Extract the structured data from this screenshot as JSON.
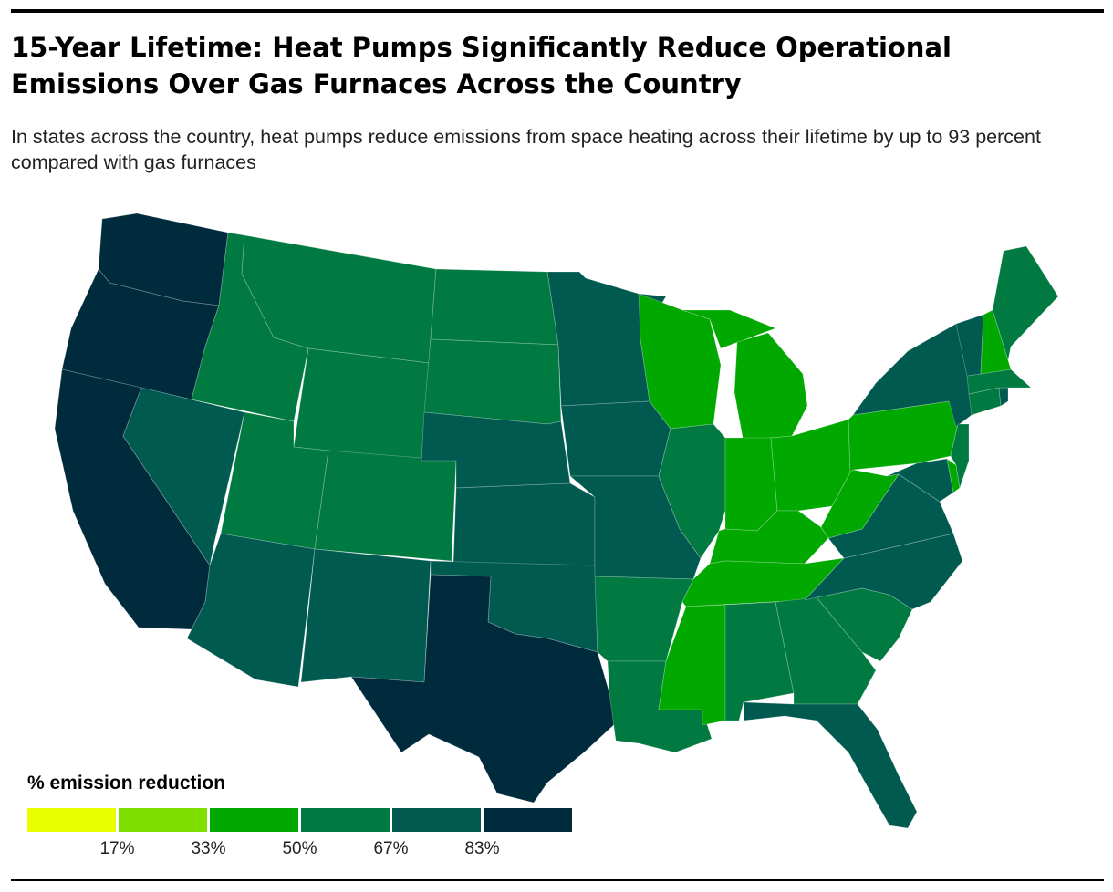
{
  "header": {
    "title": "15-Year Lifetime: Heat Pumps Significantly Reduce Operational Emissions Over Gas Furnaces Across the Country",
    "subtitle": "In states across the country, heat pumps reduce emissions from space heating across their lifetime by up to 93 percent compared with gas furnaces"
  },
  "legend": {
    "title": "% emission reduction",
    "bins": [
      {
        "color": "#e8ff00"
      },
      {
        "color": "#7fe000"
      },
      {
        "color": "#00a800"
      },
      {
        "color": "#007a40"
      },
      {
        "color": "#005a50"
      },
      {
        "color": "#002b3d"
      }
    ],
    "ticks": [
      "17%",
      "33%",
      "50%",
      "67%",
      "83%"
    ]
  },
  "map_data": {
    "type": "choropleth",
    "region": "contiguous United States",
    "value_bins": [
      "0-17%",
      "17-33%",
      "33-50%",
      "50-67%",
      "67-83%",
      "83-100%"
    ],
    "colors": {
      "33-50%": "#00a800",
      "50-67%": "#007a40",
      "67-83%": "#005a50",
      "83-100%": "#002b3d"
    },
    "state_bins": {
      "WA": "83-100%",
      "OR": "83-100%",
      "CA": "83-100%",
      "TX": "83-100%",
      "ID": "50-67%",
      "MT": "50-67%",
      "WY": "50-67%",
      "ND": "50-67%",
      "SD": "50-67%",
      "UT": "50-67%",
      "CO": "50-67%",
      "AR": "50-67%",
      "LA": "50-67%",
      "AL": "50-67%",
      "GA": "50-67%",
      "SC": "50-67%",
      "IL": "50-67%",
      "ME": "50-67%",
      "NJ": "50-67%",
      "MA": "50-67%",
      "CT": "50-67%",
      "NV": "67-83%",
      "AZ": "67-83%",
      "NM": "67-83%",
      "NE": "67-83%",
      "KS": "67-83%",
      "OK": "67-83%",
      "MN": "67-83%",
      "IA": "67-83%",
      "MO": "67-83%",
      "NY": "67-83%",
      "VT": "67-83%",
      "NC": "67-83%",
      "VA": "67-83%",
      "FL": "67-83%",
      "MD": "67-83%",
      "RI": "67-83%",
      "WI": "33-50%",
      "MI": "33-50%",
      "IN": "33-50%",
      "OH": "33-50%",
      "KY": "33-50%",
      "TN": "33-50%",
      "MS": "33-50%",
      "WV": "33-50%",
      "PA": "33-50%",
      "NH": "33-50%",
      "DE": "33-50%"
    }
  }
}
